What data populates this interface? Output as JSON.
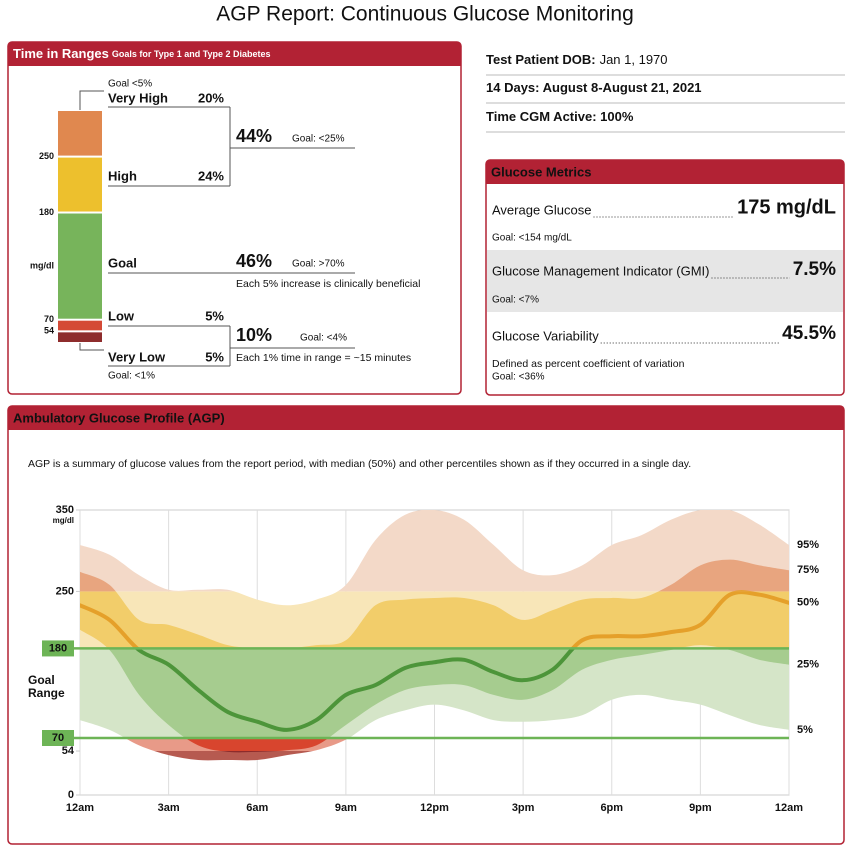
{
  "header": {
    "title": "AGP Report: Continuous Glucose Monitoring"
  },
  "time_in_ranges": {
    "title": "Time in Ranges",
    "subtitle": "Goals for Type 1 and Type 2 Diabetes",
    "unit": "mg/dl",
    "thresholds": [
      250,
      180,
      70,
      54
    ],
    "segments": [
      {
        "name": "Very High",
        "value": 20,
        "label": "20%",
        "color": "#e0884f",
        "goal": "Goal <5%"
      },
      {
        "name": "High",
        "value": 24,
        "label": "24%",
        "color": "#edc02d"
      },
      {
        "name": "Goal",
        "value": 46,
        "label": "46%",
        "color": "#77b45b",
        "goal": "Goal: >70%",
        "note": "Each 5% increase is clinically beneficial"
      },
      {
        "name": "Low",
        "value": 5,
        "label": "5%",
        "color": "#d44a36"
      },
      {
        "name": "Very Low",
        "value": 5,
        "label": "5%",
        "color": "#8e2c2c",
        "goal": "Goal: <1%"
      }
    ],
    "combined": [
      {
        "label": "44%",
        "goal": "Goal: <25%"
      },
      {
        "label": "10%",
        "goal": "Goal: <4%",
        "note": "Each 1% time in range = ~15 minutes"
      }
    ]
  },
  "patient": [
    {
      "label": "Test Patient DOB:",
      "value": "Jan 1, 1970"
    },
    {
      "label": "14 Days: August 8-August 21, 2021"
    },
    {
      "label": "Time CGM Active: 100%"
    }
  ],
  "glucose_metrics": {
    "title": "Glucose Metrics",
    "items": [
      {
        "name": "Average Glucose",
        "value": "175 mg/dL",
        "goal": "Goal: <154 mg/dL"
      },
      {
        "name": "Glucose Management Indicator (GMI)",
        "value": "7.5%",
        "goal": "Goal: <7%"
      },
      {
        "name": "Glucose Variability",
        "value": "45.5%",
        "note": "Defined as percent coefficient of variation",
        "goal": "Goal: <36%"
      }
    ]
  },
  "agp": {
    "title": "Ambulatory Glucose Profile (AGP)",
    "description": "AGP is a summary of glucose values from the report period, with median (50%) and other percentiles shown as if they occurred in a single day."
  },
  "chart_data": {
    "type": "percentile-band",
    "y_unit": "mg/dl",
    "x": [
      0,
      1,
      2,
      3,
      4,
      5,
      6,
      7,
      8,
      9,
      10,
      11,
      12,
      13,
      14,
      15,
      16,
      17,
      18,
      19,
      20,
      21,
      22,
      23,
      24
    ],
    "xlim": [
      0,
      24
    ],
    "xticks": [
      {
        "value": 0,
        "label": "12am"
      },
      {
        "value": 3,
        "label": "3am"
      },
      {
        "value": 6,
        "label": "6am"
      },
      {
        "value": 9,
        "label": "9am"
      },
      {
        "value": 12,
        "label": "12pm"
      },
      {
        "value": 15,
        "label": "3pm"
      },
      {
        "value": 18,
        "label": "6pm"
      },
      {
        "value": 21,
        "label": "9pm"
      },
      {
        "value": 24,
        "label": "12am"
      }
    ],
    "ylim": [
      0,
      350
    ],
    "yticks": [
      0,
      54,
      250,
      350
    ],
    "target": {
      "label": [
        "Goal",
        "Range"
      ],
      "low": 70,
      "high": 180,
      "color": "#6db456"
    },
    "grid": true,
    "zone_colors": [
      {
        "light": "#b65a50",
        "dark": "#8d2b2b",
        "line": "#8d2b2b"
      },
      {
        "light": "#e89a88",
        "dark": "#d8452e",
        "line": "#d8452e"
      },
      {
        "light": "#d5e5c8",
        "dark": "#a6cc8f",
        "line": "#4d953a"
      },
      {
        "light": "#f8e6b8",
        "dark": "#f2cd6a",
        "line": "#e5a02a"
      },
      {
        "light": "#f3d9c8",
        "dark": "#e8a57f",
        "line": "#e5a02a"
      }
    ],
    "series": [
      {
        "name": "95%",
        "values": [
          307,
          295,
          270,
          252,
          252,
          252,
          240,
          233,
          240,
          258,
          313,
          344,
          350,
          338,
          307,
          276,
          270,
          282,
          307,
          319,
          338,
          350,
          350,
          332,
          307
        ]
      },
      {
        "name": "75%",
        "values": [
          274,
          258,
          215,
          209,
          197,
          184,
          180,
          180,
          184,
          190,
          233,
          240,
          242,
          242,
          233,
          215,
          227,
          240,
          242,
          242,
          258,
          282,
          289,
          282,
          276
        ]
      },
      {
        "name": "50%",
        "values": [
          233,
          215,
          178,
          160,
          129,
          102,
          90,
          80,
          92,
          123,
          135,
          156,
          163,
          166,
          151,
          141,
          154,
          190,
          195,
          195,
          200,
          209,
          246,
          246,
          236
        ]
      },
      {
        "name": "25%",
        "values": [
          203,
          178,
          123,
          86,
          61,
          53,
          53,
          55,
          61,
          86,
          111,
          129,
          135,
          135,
          123,
          117,
          129,
          154,
          166,
          172,
          178,
          184,
          178,
          166,
          160
        ]
      },
      {
        "name": "5%",
        "values": [
          92,
          80,
          61,
          49,
          43,
          43,
          43,
          49,
          55,
          68,
          92,
          104,
          111,
          104,
          92,
          90,
          92,
          98,
          117,
          123,
          117,
          111,
          98,
          86,
          80
        ]
      }
    ]
  }
}
